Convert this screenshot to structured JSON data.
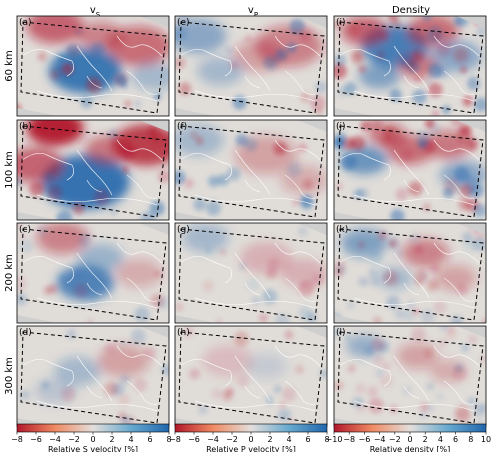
{
  "figure": {
    "column_headers": [
      "v_S",
      "v_P",
      "Density"
    ],
    "row_headers": [
      "60 km",
      "100 km",
      "200 km",
      "300 km"
    ]
  },
  "chart_data": {
    "type": "heatmap",
    "columns": [
      {
        "header": "v_S",
        "colorbar_label": "Relative S velocity [%]",
        "colorbar_ticks": [
          -8,
          -6,
          -4,
          -2,
          0,
          2,
          4,
          6,
          8
        ],
        "clim": [
          -8,
          8
        ],
        "panels": [
          {
            "label": "(a)",
            "depth": "60 km"
          },
          {
            "label": "(b)",
            "depth": "100 km"
          },
          {
            "label": "(c)",
            "depth": "200 km"
          },
          {
            "label": "(d)",
            "depth": "300 km"
          }
        ]
      },
      {
        "header": "v_P",
        "colorbar_label": "Relative P velocity [%]",
        "colorbar_ticks": [
          -8,
          -6,
          -4,
          -2,
          0,
          2,
          4,
          6,
          8
        ],
        "clim": [
          -8,
          8
        ],
        "panels": [
          {
            "label": "(e)",
            "depth": "60 km"
          },
          {
            "label": "(f)",
            "depth": "100 km"
          },
          {
            "label": "(g)",
            "depth": "200 km"
          },
          {
            "label": "(h)",
            "depth": "300 km"
          }
        ]
      },
      {
        "header": "Density",
        "colorbar_label": "Relative density [%]",
        "colorbar_ticks": [
          -10,
          -8,
          -6,
          -4,
          -2,
          0,
          2,
          4,
          6,
          8,
          10
        ],
        "clim": [
          -10,
          10
        ],
        "panels": [
          {
            "label": "(i)",
            "depth": "60 km"
          },
          {
            "label": "(j)",
            "depth": "100 km"
          },
          {
            "label": "(k)",
            "depth": "200 km"
          },
          {
            "label": "(l)",
            "depth": "300 km"
          }
        ]
      }
    ],
    "colormap": {
      "negative": "#b2182b",
      "mid": "#e0dcd8",
      "positive": "#2166ac"
    }
  }
}
